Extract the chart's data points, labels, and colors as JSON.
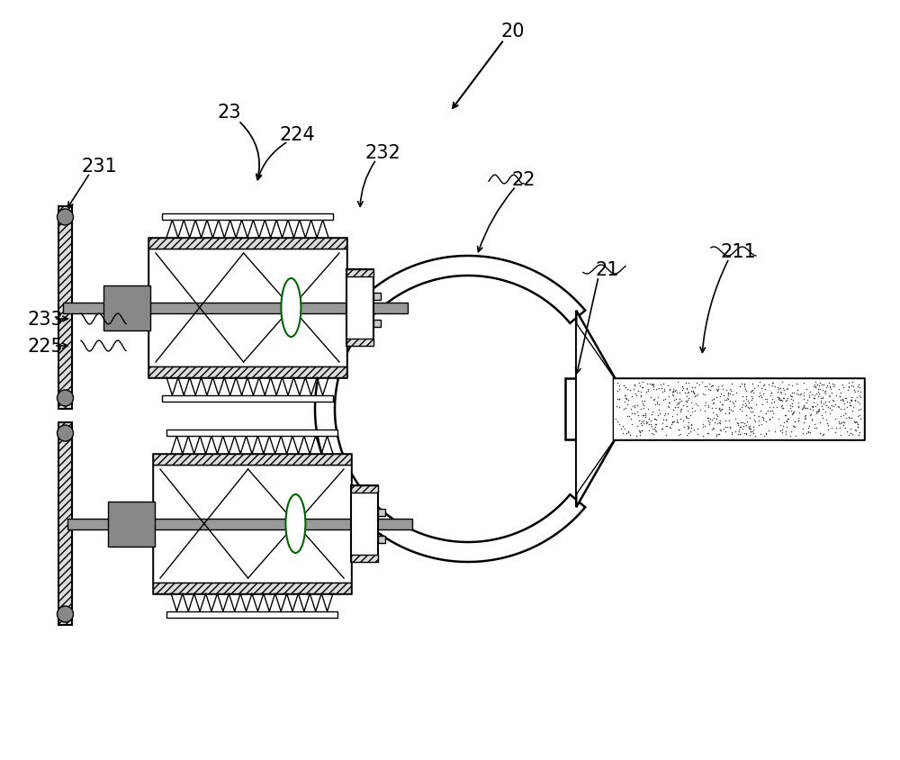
{
  "bg_color": "#ffffff",
  "figsize": [
    10.0,
    8.45
  ],
  "dpi": 100,
  "label_fs": 15
}
